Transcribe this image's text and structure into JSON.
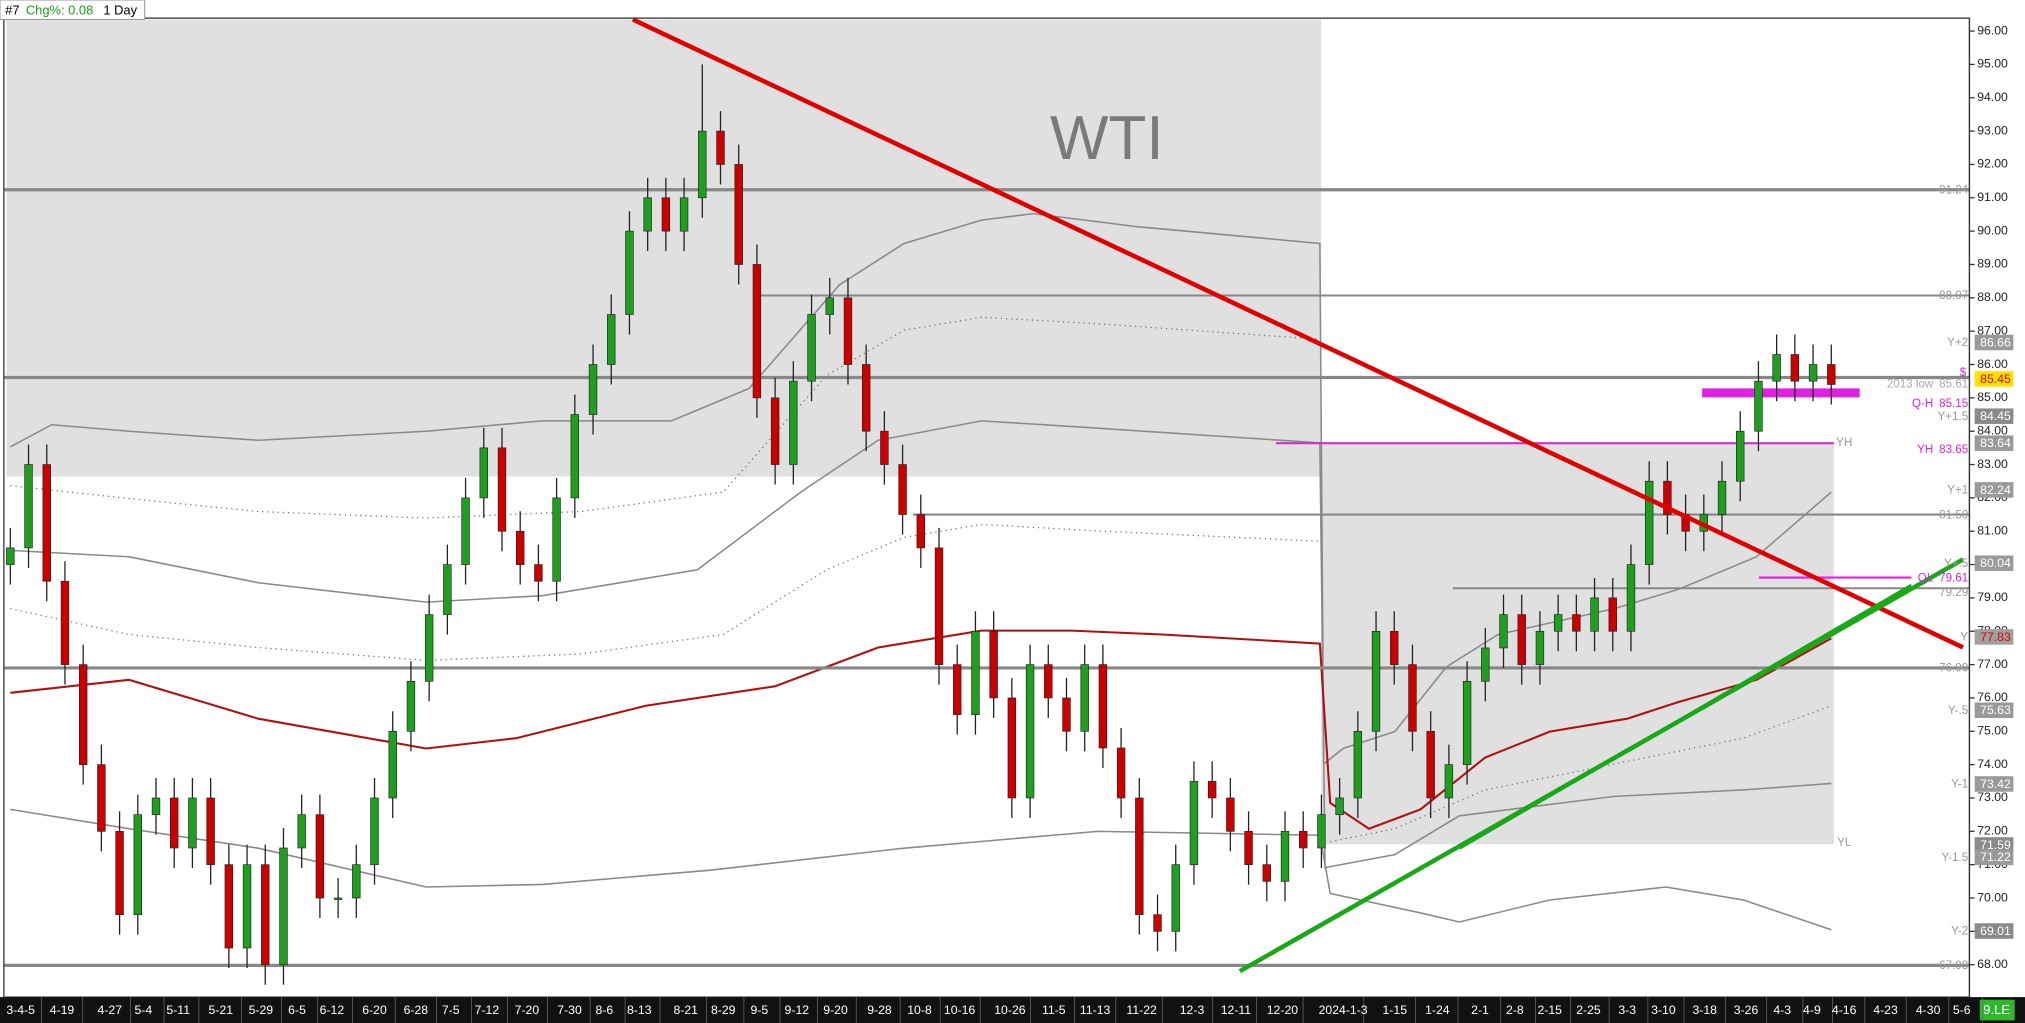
{
  "header": {
    "symbol": "#7",
    "change": "Chg%: 0.08",
    "interval": "1 Day"
  },
  "watermark": "WTI",
  "corner_label": "9.LE",
  "chart_data": {
    "type": "candlestick",
    "x_labels": [
      "3-4-5",
      "4-19",
      "4-27",
      "5-4",
      "5-11",
      "5-21",
      "5-29",
      "6-5",
      "6-12",
      "6-20",
      "6-28",
      "7-5",
      "7-12",
      "7-20",
      "7-30",
      "8-6",
      "8-13",
      "8-21",
      "8-29",
      "9-5",
      "9-12",
      "9-20",
      "9-28",
      "10-8",
      "10-16",
      "10-26",
      "11-5",
      "11-13",
      "11-22",
      "12-3",
      "12-11",
      "12-20",
      "2024-1-3",
      "1-15",
      "1-24",
      "2-1",
      "2-8",
      "2-15",
      "2-25",
      "3-3",
      "3-10",
      "3-18",
      "3-26",
      "4-3",
      "4-9",
      "4-16",
      "4-23",
      "4-30",
      "5-6"
    ],
    "series": [
      {
        "up_color": "#1f9e1f",
        "down_color": "#cc0000",
        "open": [
          80.0,
          80.5,
          83.0,
          79.5,
          77.0,
          74.0,
          72.0,
          69.5,
          72.5,
          73.0,
          71.5,
          73.0,
          71.0,
          68.5,
          71.0,
          68.0,
          71.5,
          72.5,
          70.0,
          70.0,
          71.0,
          73.0,
          75.0,
          76.5,
          78.5,
          80.0,
          82.0,
          83.5,
          81.0,
          80.0,
          79.5,
          82.0,
          84.5,
          86.0,
          87.5,
          90.0,
          91.0,
          90.0,
          91.0,
          93.0,
          92.0,
          89.0,
          85.0,
          83.0,
          85.5,
          87.5,
          88.0,
          86.0,
          84.0,
          83.0,
          81.5,
          80.5,
          77.0,
          75.5,
          78.0,
          76.0,
          73.0,
          77.0,
          76.0,
          75.0,
          77.0,
          74.5,
          73.0,
          69.5,
          69.0,
          71.0,
          73.5,
          73.0,
          72.0,
          71.0,
          70.5,
          72.0,
          71.5,
          72.5,
          73.0,
          75.0,
          78.0,
          77.0,
          75.0,
          73.0,
          74.0,
          76.5,
          77.5,
          78.5,
          77.0,
          78.0,
          78.5,
          78.0,
          79.0,
          78.0,
          80.0,
          82.5,
          81.5,
          81.0,
          81.5,
          82.5,
          84.0,
          85.5,
          86.3,
          85.5,
          86.0
        ],
        "high": [
          81.1,
          83.6,
          83.6,
          80.1,
          77.6,
          74.6,
          72.6,
          73.1,
          73.6,
          73.6,
          73.6,
          73.6,
          71.6,
          71.6,
          71.6,
          72.1,
          73.1,
          73.1,
          70.6,
          71.6,
          73.6,
          75.6,
          77.1,
          79.1,
          80.6,
          82.6,
          84.1,
          84.1,
          81.6,
          80.6,
          82.6,
          85.1,
          86.6,
          88.1,
          90.6,
          91.6,
          91.6,
          91.6,
          95.0,
          93.6,
          92.6,
          89.6,
          85.6,
          86.1,
          88.1,
          88.6,
          88.6,
          86.6,
          84.6,
          83.6,
          82.1,
          81.1,
          77.6,
          78.6,
          78.6,
          76.6,
          77.6,
          77.6,
          76.6,
          77.6,
          77.6,
          75.1,
          73.6,
          70.1,
          71.6,
          74.1,
          74.1,
          73.6,
          72.6,
          71.6,
          72.6,
          72.6,
          73.1,
          73.6,
          75.6,
          78.6,
          78.6,
          77.6,
          75.6,
          74.6,
          77.1,
          78.1,
          79.1,
          79.1,
          78.6,
          79.1,
          79.1,
          79.6,
          79.6,
          80.6,
          83.1,
          83.1,
          82.1,
          82.1,
          83.1,
          84.6,
          86.1,
          86.9,
          86.9,
          86.6,
          86.6
        ],
        "low": [
          79.4,
          79.9,
          78.9,
          76.4,
          73.4,
          71.4,
          68.9,
          68.9,
          71.9,
          70.9,
          70.9,
          70.4,
          67.9,
          67.9,
          67.4,
          67.4,
          70.9,
          69.4,
          69.4,
          69.4,
          70.4,
          72.4,
          74.4,
          75.9,
          77.9,
          79.4,
          81.4,
          80.4,
          79.4,
          78.9,
          78.9,
          81.4,
          83.9,
          85.4,
          86.9,
          89.4,
          89.4,
          89.4,
          90.4,
          91.4,
          88.4,
          84.4,
          82.4,
          82.4,
          84.9,
          86.9,
          85.4,
          83.4,
          82.4,
          80.9,
          79.9,
          76.4,
          74.9,
          74.9,
          75.4,
          72.4,
          72.4,
          75.4,
          74.4,
          74.4,
          73.9,
          72.4,
          68.9,
          68.4,
          68.4,
          70.4,
          72.4,
          71.4,
          70.4,
          69.9,
          69.9,
          70.9,
          70.9,
          71.9,
          72.4,
          74.4,
          76.4,
          74.4,
          72.4,
          72.4,
          73.4,
          75.9,
          76.9,
          76.4,
          76.4,
          77.4,
          77.4,
          77.4,
          77.4,
          77.4,
          79.4,
          80.9,
          80.4,
          80.4,
          80.9,
          81.9,
          83.4,
          84.9,
          84.9,
          84.9,
          84.8
        ],
        "close": [
          80.5,
          83.0,
          79.5,
          77.0,
          74.0,
          72.0,
          69.5,
          72.5,
          73.0,
          71.5,
          73.0,
          71.0,
          68.5,
          71.0,
          68.0,
          71.5,
          72.5,
          70.0,
          70.0,
          71.0,
          73.0,
          75.0,
          76.5,
          78.5,
          80.0,
          82.0,
          83.5,
          81.0,
          80.0,
          79.5,
          82.0,
          84.5,
          86.0,
          87.5,
          90.0,
          91.0,
          90.0,
          91.0,
          93.0,
          92.0,
          89.0,
          85.0,
          83.0,
          85.5,
          87.5,
          88.0,
          86.0,
          84.0,
          83.0,
          81.5,
          80.5,
          77.0,
          75.5,
          78.0,
          76.0,
          73.0,
          77.0,
          76.0,
          75.0,
          77.0,
          74.5,
          73.0,
          69.5,
          69.0,
          71.0,
          73.5,
          73.0,
          72.0,
          71.0,
          70.5,
          72.0,
          71.5,
          72.5,
          73.0,
          75.0,
          78.0,
          77.0,
          75.0,
          73.0,
          74.0,
          76.5,
          77.5,
          78.5,
          77.0,
          78.0,
          78.5,
          78.0,
          79.0,
          78.0,
          80.0,
          82.5,
          81.5,
          81.0,
          81.5,
          82.5,
          84.0,
          85.5,
          86.3,
          85.5,
          86.0,
          85.4
        ]
      }
    ],
    "ylim": [
      67.3,
      96.6
    ],
    "yticks": [
      {
        "value": 68,
        "label": "68.00"
      },
      {
        "value": 69,
        "label": "69.00"
      },
      {
        "value": 70,
        "label": "70.00"
      },
      {
        "value": 71,
        "label": "71.00"
      },
      {
        "value": 72,
        "label": "72.00"
      },
      {
        "value": 73,
        "label": "73.00"
      },
      {
        "value": 74,
        "label": "74.00"
      },
      {
        "value": 75,
        "label": "75.00"
      },
      {
        "value": 76,
        "label": "76.00"
      },
      {
        "value": 77,
        "label": "77.00"
      },
      {
        "value": 78,
        "label": "78.00"
      },
      {
        "value": 79,
        "label": "79.00"
      },
      {
        "value": 80,
        "label": "80.00"
      },
      {
        "value": 81,
        "label": "81.00"
      },
      {
        "value": 82,
        "label": "82.00"
      },
      {
        "value": 83,
        "label": "83.00"
      },
      {
        "value": 84,
        "label": "84.00"
      },
      {
        "value": 85,
        "label": "85.00"
      },
      {
        "value": 86,
        "label": "86.00"
      },
      {
        "value": 87,
        "label": "87.00"
      },
      {
        "value": 88,
        "label": "88.00"
      },
      {
        "value": 89,
        "label": "89.00"
      },
      {
        "value": 90,
        "label": "90.00"
      },
      {
        "value": 91,
        "label": "91.00"
      },
      {
        "value": 92,
        "label": "92.00"
      },
      {
        "value": 93,
        "label": "93.00"
      },
      {
        "value": 94,
        "label": "94.00"
      },
      {
        "value": 95,
        "label": "95.00"
      },
      {
        "value": 96,
        "label": "96.00"
      }
    ],
    "levels": [
      {
        "price": 91.24,
        "text_color": "#999999",
        "line_color": "#888888"
      },
      {
        "price": 88.07,
        "text_color": "#999999",
        "line_color": "#888888"
      },
      {
        "tag": "Y+2",
        "price": 86.66,
        "text_color": "#ffffff",
        "badge": "#9a9a9a"
      },
      {
        "price": 85.45,
        "text_color": "#e00000",
        "badge": "#ffe000"
      },
      {
        "tag": "2013 low",
        "price": 85.61,
        "text_color": "#aaaaaa",
        "line_color": "#888888"
      },
      {
        "tag": "Q-H",
        "price": 85.15,
        "text_color": "#e020e0",
        "line_color": "#e020e0"
      },
      {
        "tag": "Y+1.5",
        "price": 84.45,
        "text_color": "#ffffff",
        "badge": "#8a8a8a"
      },
      {
        "price": 83.64,
        "text_color": "#ffffff",
        "badge": "#9a9a9a",
        "line_color": "#d030d0"
      },
      {
        "tag": "YH",
        "price": 83.65,
        "text_color": "#e020e0"
      },
      {
        "tag": "Y+1",
        "price": 82.24,
        "text_color": "#ffffff",
        "badge": "#9a9a9a"
      },
      {
        "price": {
          "value": 81.5,
          "label": "81.50"
        },
        "text_color": "#999999",
        "line_color": "#888888"
      },
      {
        "tag": "Y+.5",
        "price": 80.04,
        "text_color": "#ffffff",
        "badge": "#9a9a9a"
      },
      {
        "tag": "QL",
        "price": 79.61,
        "text_color": "#e020e0",
        "line_color": "#e020e0"
      },
      {
        "price": 79.29,
        "text_color": "#999999",
        "line_color": "#888888"
      },
      {
        "tag": "Y",
        "price": 77.83,
        "text_color": "#e00000",
        "badge": "#a0a0a0"
      },
      {
        "price": {
          "value": 76.9,
          "label": "76.90"
        },
        "text_color": "#999999",
        "line_color": "#888888"
      },
      {
        "tag": "Y-.5",
        "price": 75.63,
        "text_color": "#ffffff",
        "badge": "#9a9a9a"
      },
      {
        "tag": "Y-1",
        "price": 73.42,
        "text_color": "#ffffff",
        "badge": "#9a9a9a"
      },
      {
        "price": 71.59,
        "text_color": "#ffffff",
        "badge": "#8a8a8a"
      },
      {
        "tag": "Y-1.5",
        "price": 71.22,
        "text_color": "#ffffff",
        "badge": "#9a9a9a"
      },
      {
        "tag": "Y-2",
        "price": 69.01,
        "text_color": "#ffffff",
        "badge": "#8a8a8a"
      },
      {
        "price": 67.98,
        "text_color": "#999999",
        "line_color": "#888888"
      }
    ],
    "annotations": [
      "$",
      "YH",
      "YL"
    ]
  }
}
